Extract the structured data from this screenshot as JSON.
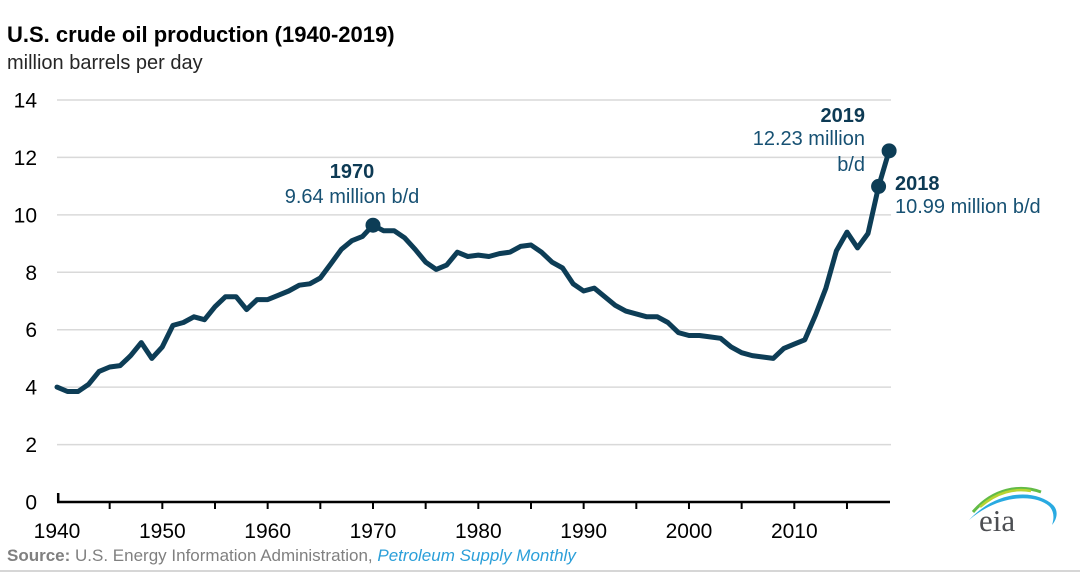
{
  "header": {
    "title": "U.S. crude oil production (1940-2019)",
    "subtitle": "million barrels per day"
  },
  "source": {
    "label": "Source:",
    "text": " U.S. Energy Information Administration, ",
    "link_text": "Petroleum Supply Monthly"
  },
  "logo": {
    "text": "eia"
  },
  "colors": {
    "line": "#0d3d56",
    "grid": "#d9d9d9",
    "axis": "#000000",
    "tick_label": "#000000",
    "annotation_year": "#0d3a54",
    "annotation_value": "#175173",
    "source_text": "#808080",
    "source_link": "#2b9fd9",
    "logo_green": "#62bb46",
    "logo_yellowgreen": "#b8d432",
    "logo_blue": "#29aae1"
  },
  "chart_data": {
    "type": "line",
    "title": "U.S. crude oil production (1940-2019)",
    "ylabel": "million barrels per day",
    "xlabel": "",
    "xlim": [
      1940,
      2019
    ],
    "ylim": [
      0,
      14
    ],
    "y_ticks": [
      0,
      2,
      4,
      6,
      8,
      10,
      12,
      14
    ],
    "x_major_ticks": [
      1940,
      1950,
      1960,
      1970,
      1980,
      1990,
      2000,
      2010
    ],
    "x_minor_tick_interval": 5,
    "grid": "horizontal",
    "legend": "none",
    "series_name": "U.S. crude oil production",
    "years": [
      1940,
      1941,
      1942,
      1943,
      1944,
      1945,
      1946,
      1947,
      1948,
      1949,
      1950,
      1951,
      1952,
      1953,
      1954,
      1955,
      1956,
      1957,
      1958,
      1959,
      1960,
      1961,
      1962,
      1963,
      1964,
      1965,
      1966,
      1967,
      1968,
      1969,
      1970,
      1971,
      1972,
      1973,
      1974,
      1975,
      1976,
      1977,
      1978,
      1979,
      1980,
      1981,
      1982,
      1983,
      1984,
      1985,
      1986,
      1987,
      1988,
      1989,
      1990,
      1991,
      1992,
      1993,
      1994,
      1995,
      1996,
      1997,
      1998,
      1999,
      2000,
      2001,
      2002,
      2003,
      2004,
      2005,
      2006,
      2007,
      2008,
      2009,
      2010,
      2011,
      2012,
      2013,
      2014,
      2015,
      2016,
      2017,
      2018,
      2019
    ],
    "values": [
      4.0,
      3.85,
      3.85,
      4.1,
      4.55,
      4.7,
      4.75,
      5.1,
      5.55,
      5.0,
      5.4,
      6.15,
      6.25,
      6.45,
      6.35,
      6.8,
      7.15,
      7.15,
      6.7,
      7.05,
      7.05,
      7.2,
      7.35,
      7.55,
      7.6,
      7.8,
      8.3,
      8.8,
      9.1,
      9.25,
      9.64,
      9.45,
      9.45,
      9.2,
      8.8,
      8.35,
      8.1,
      8.25,
      8.7,
      8.55,
      8.6,
      8.55,
      8.65,
      8.7,
      8.9,
      8.95,
      8.7,
      8.35,
      8.15,
      7.6,
      7.35,
      7.45,
      7.15,
      6.85,
      6.65,
      6.55,
      6.45,
      6.45,
      6.25,
      5.9,
      5.8,
      5.8,
      5.75,
      5.7,
      5.4,
      5.2,
      5.1,
      5.05,
      5.0,
      5.35,
      5.5,
      5.65,
      6.5,
      7.45,
      8.75,
      9.4,
      8.85,
      9.35,
      10.99,
      12.23
    ],
    "annotations": [
      {
        "id": "y1970",
        "year_label": "1970",
        "value_lines": [
          "9.64 million b/d"
        ],
        "point_year": 1970,
        "point_value": 9.64
      },
      {
        "id": "y2019",
        "year_label": "2019",
        "value_lines": [
          "12.23 million",
          "b/d"
        ],
        "point_year": 2019,
        "point_value": 12.23
      },
      {
        "id": "y2018",
        "year_label": "2018",
        "value_lines": [
          "10.99 million b/d"
        ],
        "point_year": 2018,
        "point_value": 10.99
      }
    ]
  }
}
